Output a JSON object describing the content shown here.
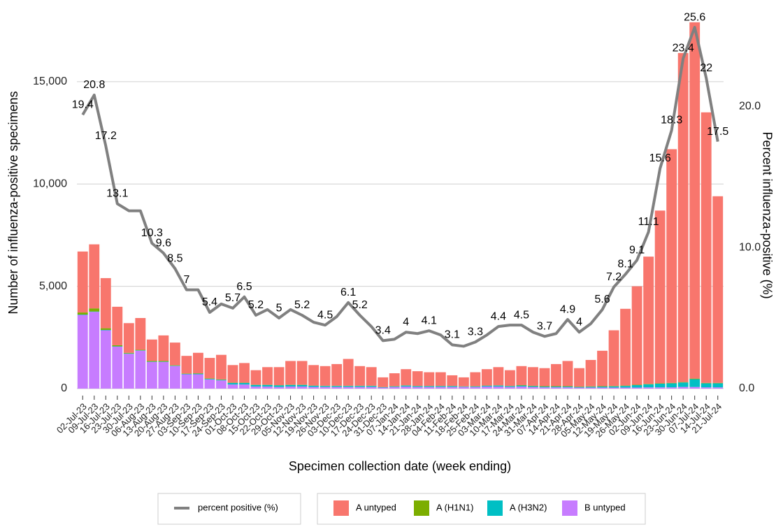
{
  "chart_data": {
    "type": "bar",
    "stacked": true,
    "x_label": "Specimen collection date (week ending)",
    "y_label": "Number of influenza-positive specimens",
    "y2_label": "Percent influenza-positive (%)",
    "categories": [
      "02-Jul-23",
      "09-Jul-23",
      "16-Jul-23",
      "23-Jul-23",
      "30-Jul-23",
      "06-Aug-23",
      "13-Aug-23",
      "20-Aug-23",
      "27-Aug-23",
      "03-Sep-23",
      "10-Sep-23",
      "17-Sep-23",
      "24-Sep-23",
      "01-Oct-23",
      "08-Oct-23",
      "15-Oct-23",
      "22-Oct-23",
      "29-Oct-23",
      "05-Nov-23",
      "12-Nov-23",
      "19-Nov-23",
      "26-Nov-23",
      "03-Dec-23",
      "10-Dec-23",
      "17-Dec-23",
      "24-Dec-23",
      "31-Dec-23",
      "07-Jan-24",
      "14-Jan-24",
      "21-Jan-24",
      "28-Jan-24",
      "04-Feb-24",
      "11-Feb-24",
      "18-Feb-24",
      "25-Feb-24",
      "03-Mar-24",
      "10-Mar-24",
      "17-Mar-24",
      "24-Mar-24",
      "31-Mar-24",
      "07-Apr-24",
      "14-Apr-24",
      "21-Apr-24",
      "28-Apr-24",
      "05-May-24",
      "12-May-24",
      "19-May-24",
      "26-May-24",
      "02-Jun-24",
      "09-Jun-24",
      "16-Jun-24",
      "23-Jun-24",
      "30-Jun-24",
      "07-Jul-24",
      "14-Jul-24",
      "21-Jul-24"
    ],
    "series": [
      {
        "name": "A untyped",
        "color": "#F8766D",
        "values": [
          2980,
          3130,
          2450,
          1880,
          1450,
          1550,
          1050,
          1250,
          1110,
          860,
          1000,
          1000,
          1200,
          860,
          960,
          710,
          860,
          880,
          1160,
          1160,
          1000,
          960,
          1060,
          1310,
          960,
          910,
          470,
          630,
          790,
          720,
          670,
          670,
          520,
          440,
          680,
          800,
          890,
          770,
          930,
          910,
          880,
          1080,
          1230,
          900,
          1290,
          1730,
          2720,
          3750,
          4810,
          6220,
          8440,
          11420,
          16080,
          17410,
          13220,
          9120
        ]
      },
      {
        "name": "A (H1N1)",
        "color": "#7CAE00",
        "values": [
          100,
          150,
          80,
          50,
          30,
          30,
          30,
          30,
          20,
          20,
          20,
          20,
          20,
          10,
          10,
          10,
          10,
          10,
          10,
          10,
          10,
          10,
          10,
          10,
          10,
          10,
          10,
          10,
          10,
          10,
          10,
          10,
          10,
          10,
          10,
          10,
          10,
          10,
          20,
          20,
          20,
          20,
          20,
          20,
          20,
          20,
          20,
          20,
          20,
          20,
          20,
          20,
          20,
          30,
          20,
          20
        ]
      },
      {
        "name": "A (H3N2)",
        "color": "#00BFC4",
        "values": [
          20,
          20,
          20,
          20,
          20,
          20,
          20,
          20,
          20,
          20,
          30,
          30,
          30,
          80,
          80,
          80,
          80,
          80,
          80,
          80,
          60,
          50,
          50,
          50,
          50,
          50,
          20,
          30,
          50,
          40,
          40,
          40,
          40,
          20,
          30,
          40,
          50,
          40,
          50,
          40,
          40,
          40,
          40,
          30,
          40,
          50,
          60,
          80,
          120,
          150,
          180,
          200,
          220,
          380,
          200,
          200
        ]
      },
      {
        "name": "B untyped",
        "color": "#C77CFF",
        "values": [
          3600,
          3750,
          2850,
          2050,
          1700,
          1850,
          1300,
          1300,
          1100,
          700,
          700,
          450,
          400,
          200,
          200,
          100,
          100,
          80,
          100,
          100,
          80,
          80,
          80,
          80,
          80,
          80,
          50,
          80,
          100,
          80,
          80,
          80,
          80,
          80,
          80,
          100,
          100,
          80,
          100,
          80,
          60,
          60,
          60,
          50,
          50,
          50,
          50,
          50,
          50,
          60,
          60,
          60,
          80,
          80,
          60,
          60
        ]
      },
      {
        "name": "percent positive (%)",
        "type": "line",
        "axis": "y2",
        "color": "#808080",
        "values": [
          19.4,
          20.8,
          17.2,
          13.1,
          12.6,
          12.6,
          10.3,
          9.6,
          8.5,
          7,
          7.0,
          5.4,
          6.0,
          5.7,
          6.5,
          5.2,
          5.6,
          5,
          5.6,
          5.2,
          4.7,
          4.5,
          5.1,
          6.1,
          5.2,
          4.4,
          3.4,
          3.5,
          4,
          3.9,
          4.1,
          3.8,
          3.1,
          3.0,
          3.3,
          3.8,
          4.4,
          4.5,
          4.5,
          4.0,
          3.7,
          3.9,
          4.9,
          4,
          4.6,
          5.6,
          7.2,
          8.1,
          9.1,
          11.1,
          15.6,
          18.3,
          23.4,
          25.6,
          22,
          17.5
        ],
        "value_labels": [
          "19.4",
          "20.8",
          "17.2",
          "13.1",
          null,
          null,
          "10.3",
          "9.6",
          "8.5",
          "7",
          null,
          "5.4",
          null,
          "5.7",
          "6.5",
          "5.2",
          null,
          "5",
          null,
          "5.2",
          null,
          "4.5",
          null,
          "6.1",
          "5.2",
          null,
          "3.4",
          null,
          "4",
          null,
          "4.1",
          null,
          "3.1",
          null,
          "3.3",
          null,
          "4.4",
          null,
          "4.5",
          null,
          "3.7",
          null,
          "4.9",
          "4",
          null,
          "5.6",
          "7.2",
          "8.1",
          "9.1",
          "11.1",
          "15.6",
          "18.3",
          "23.4",
          "25.6",
          "22",
          "17.5"
        ]
      }
    ],
    "ylim": [
      0,
      18000
    ],
    "yticks": [
      0,
      {
        "value": 5000,
        "label": "5,000"
      },
      {
        "value": 10000,
        "label": "10,000"
      },
      {
        "value": 15000,
        "label": "15,000"
      }
    ],
    "y2lim": [
      0,
      26.1
    ],
    "y2ticks": [
      {
        "value": 0,
        "label": "0.0"
      },
      {
        "value": 10,
        "label": "10.0"
      },
      {
        "value": 20,
        "label": "20.0"
      }
    ],
    "grid": true,
    "legend": "bottom"
  }
}
